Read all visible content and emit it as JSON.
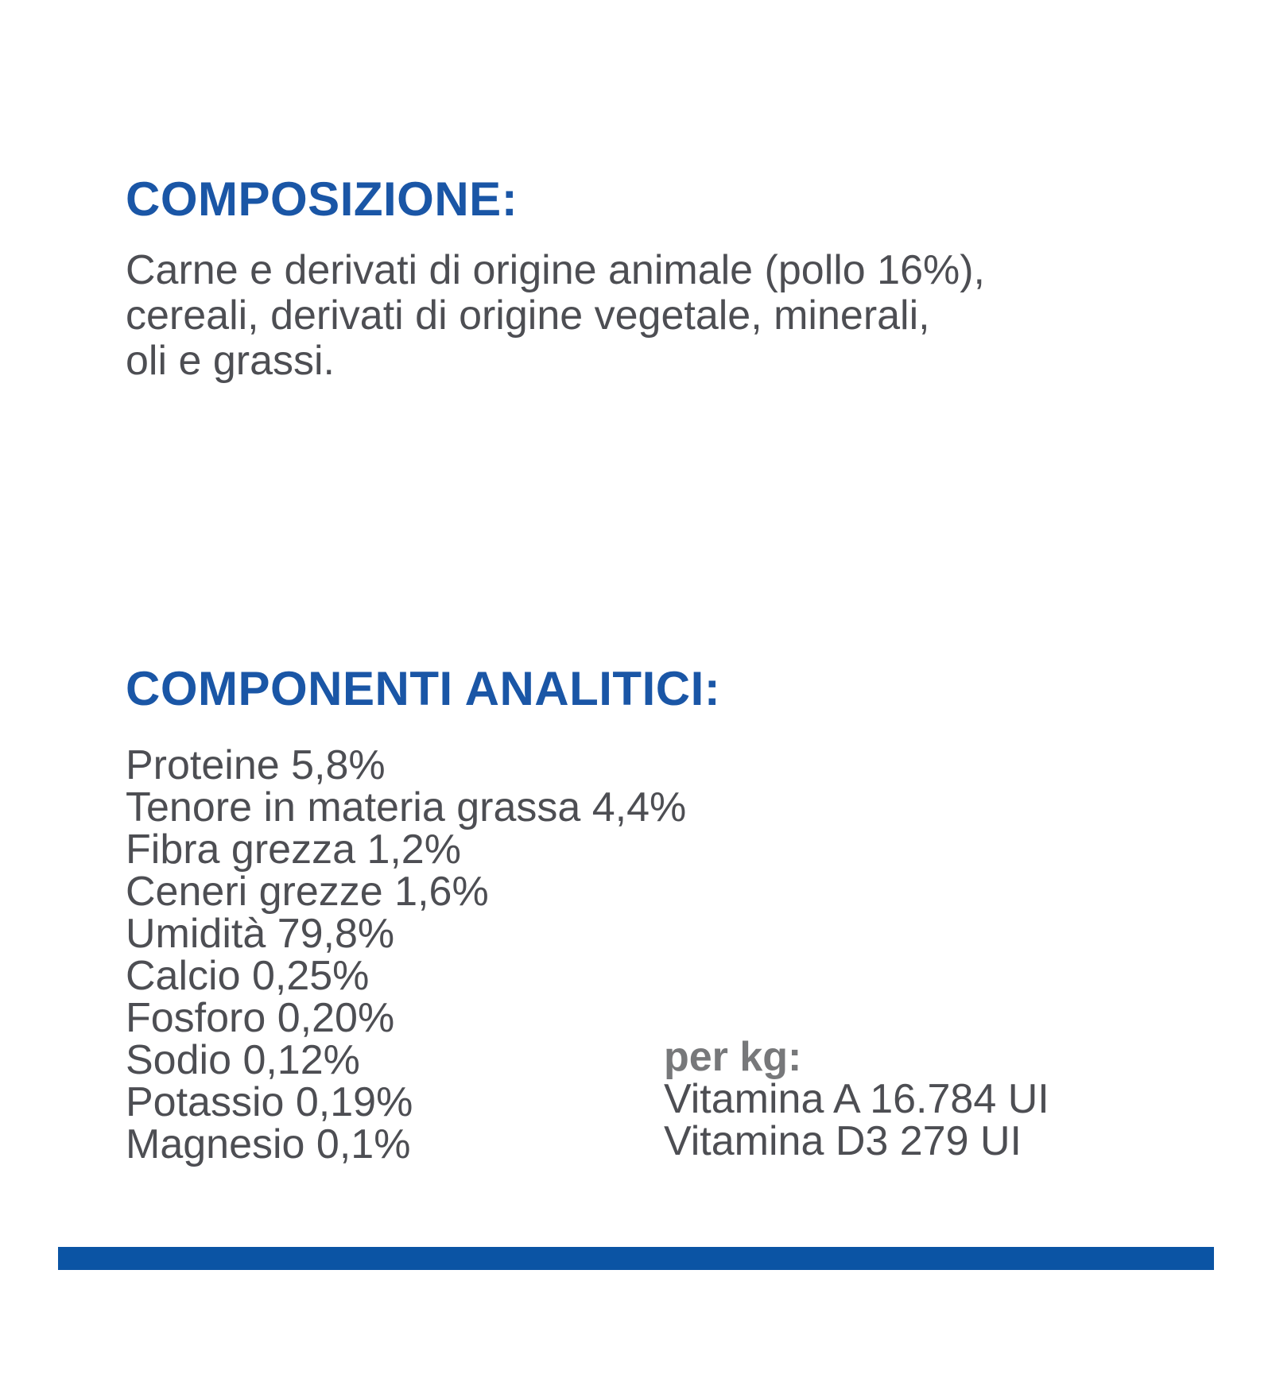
{
  "page": {
    "background_color": "#ffffff",
    "heading_color": "#1a56a6",
    "body_text_color": "#4d4e53",
    "per_kg_label_color": "#77787a",
    "bottom_bar_color": "#0b54a4"
  },
  "composition": {
    "heading": "COMPOSIZIONE:",
    "lines": [
      "Carne e derivati di origine animale (pollo 16%),",
      "cereali, derivati di origine vegetale, minerali,",
      "oli e grassi."
    ]
  },
  "analytical": {
    "heading": "COMPONENTI ANALITICI:",
    "items": [
      "Proteine 5,8%",
      "Tenore in materia grassa 4,4%",
      "Fibra grezza 1,2%",
      "Ceneri grezze 1,6%",
      "Umidità 79,8%",
      "Calcio 0,25%",
      "Fosforo 0,20%",
      "Sodio 0,12%",
      "Potassio 0,19%",
      "Magnesio 0,1%"
    ],
    "per_kg": {
      "label": "per kg:",
      "values": [
        "Vitamina A 16.784 UI",
        "Vitamina D3 279 UI"
      ]
    }
  }
}
